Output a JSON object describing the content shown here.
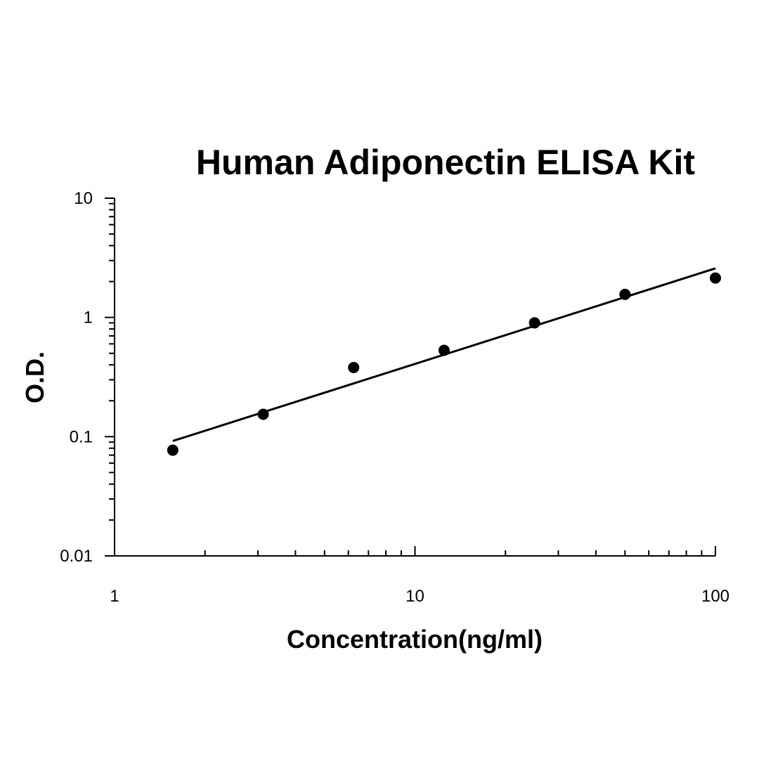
{
  "chart_data": {
    "type": "scatter",
    "title": "Human Adiponectin ELISA Kit",
    "x_label": "Concentration(ng/ml)",
    "y_label": "O.D.",
    "log_x": true,
    "log_y": true,
    "x": [
      1.5625,
      3.125,
      6.25,
      12.5,
      25,
      50,
      100
    ],
    "series": [
      {
        "color": "#000000",
        "values": [
          0.077,
          0.154,
          0.38,
          0.53,
          0.9,
          1.56,
          2.14
        ]
      }
    ],
    "fit": {
      "color": "#000000",
      "x": [
        1.5625,
        100
      ],
      "values": [
        0.092,
        2.58
      ]
    },
    "xlim": [
      1,
      100
    ],
    "ylim": [
      0.01,
      10
    ],
    "xticks": [
      1,
      10,
      100
    ],
    "yticks": [
      0.01,
      0.1,
      1,
      10
    ],
    "xminorticks": [
      2,
      3,
      4,
      5,
      6,
      7,
      8,
      9,
      20,
      30,
      40,
      50,
      60,
      70,
      80,
      90
    ],
    "yminorticks": [
      0.02,
      0.03,
      0.04,
      0.05,
      0.06,
      0.07,
      0.08,
      0.09,
      0.2,
      0.3,
      0.4,
      0.5,
      0.6,
      0.7,
      0.8,
      0.9,
      2,
      3,
      4,
      5,
      6,
      7,
      8,
      9
    ]
  }
}
